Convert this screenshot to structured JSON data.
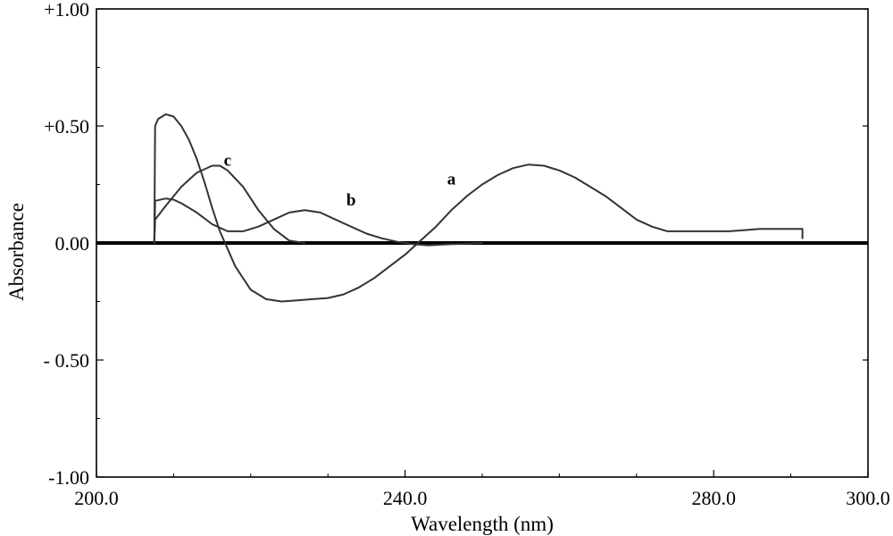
{
  "chart_data": {
    "type": "line",
    "xlabel": "Wavelength (nm)",
    "ylabel": "Absorbance",
    "xlim": [
      200,
      300
    ],
    "ylim": [
      -1.0,
      1.0
    ],
    "x_ticks": [
      {
        "value": 200,
        "label": "200.0"
      },
      {
        "value": 240,
        "label": "240.0"
      },
      {
        "value": 280,
        "label": "280.0"
      },
      {
        "value": 300,
        "label": "300.0"
      }
    ],
    "y_ticks": [
      {
        "value": 1.0,
        "label": "+1.00"
      },
      {
        "value": 0.5,
        "label": "+0.50"
      },
      {
        "value": 0.0,
        "label": "0.00"
      },
      {
        "value": -0.5,
        "label": "- 0.50"
      },
      {
        "value": -1.0,
        "label": "-1.00"
      }
    ],
    "zero_line": true,
    "series": [
      {
        "name": "a",
        "label_at": [
          246,
          0.25
        ],
        "x": [
          207.5,
          207.6,
          208.0,
          209.0,
          210.0,
          211.0,
          212.0,
          213.0,
          214.0,
          215.0,
          216.0,
          218.0,
          220.0,
          222.0,
          224.0,
          226.0,
          228.0,
          230.0,
          232.0,
          234.0,
          236.0,
          238.0,
          240.0,
          242.0,
          244.0,
          246.0,
          248.0,
          250.0,
          252.0,
          254.0,
          256.0,
          258.0,
          260.0,
          262.0,
          264.0,
          266.0,
          268.0,
          270.0,
          272.0,
          274.0,
          276.0,
          278.0,
          280.0,
          282.0,
          284.0,
          286.0,
          288.0,
          290.0,
          291.5,
          291.5
        ],
        "y": [
          0.0,
          0.5,
          0.53,
          0.55,
          0.54,
          0.5,
          0.44,
          0.36,
          0.26,
          0.15,
          0.05,
          -0.1,
          -0.2,
          -0.24,
          -0.25,
          -0.245,
          -0.24,
          -0.235,
          -0.22,
          -0.19,
          -0.15,
          -0.1,
          -0.05,
          0.01,
          0.07,
          0.14,
          0.2,
          0.25,
          0.29,
          0.32,
          0.335,
          0.33,
          0.31,
          0.28,
          0.24,
          0.2,
          0.15,
          0.1,
          0.07,
          0.05,
          0.05,
          0.05,
          0.05,
          0.05,
          0.055,
          0.06,
          0.06,
          0.06,
          0.06,
          0.02
        ]
      },
      {
        "name": "b",
        "label_at": [
          233,
          0.16
        ],
        "x": [
          207.5,
          207.6,
          209.0,
          210.0,
          211.0,
          213.0,
          215.0,
          217.0,
          219.0,
          221.0,
          223.0,
          225.0,
          227.0,
          229.0,
          231.0,
          233.0,
          235.0,
          237.0,
          239.0,
          241.0,
          243.0,
          246.0,
          250.0
        ],
        "y": [
          0.0,
          0.18,
          0.19,
          0.185,
          0.17,
          0.13,
          0.08,
          0.05,
          0.05,
          0.07,
          0.1,
          0.13,
          0.14,
          0.13,
          0.1,
          0.07,
          0.04,
          0.02,
          0.005,
          -0.005,
          -0.01,
          -0.005,
          0.0
        ]
      },
      {
        "name": "c",
        "label_at": [
          217,
          0.33
        ],
        "x": [
          207.5,
          207.6,
          209.0,
          211.0,
          213.0,
          215.0,
          216.0,
          217.0,
          219.0,
          221.0,
          223.0,
          225.0,
          227.0
        ],
        "y": [
          0.0,
          0.1,
          0.16,
          0.24,
          0.3,
          0.33,
          0.33,
          0.31,
          0.24,
          0.14,
          0.06,
          0.01,
          0.0
        ]
      }
    ]
  }
}
